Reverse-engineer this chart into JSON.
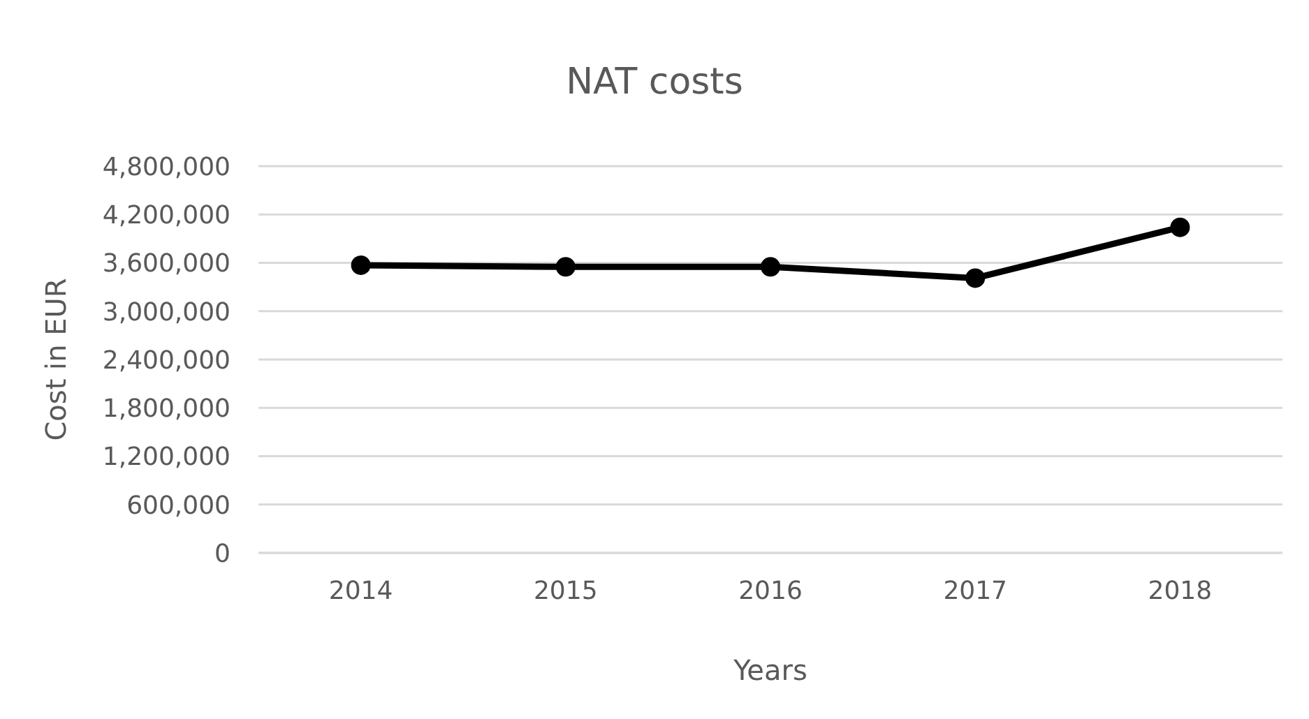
{
  "chart_data": {
    "type": "line",
    "title": "NAT costs",
    "xlabel": "Years",
    "ylabel": "Cost in EUR",
    "categories": [
      "2014",
      "2015",
      "2016",
      "2017",
      "2018"
    ],
    "series": [
      {
        "color": "#000000",
        "values": [
          3570000,
          3550000,
          3550000,
          3410000,
          4040000
        ]
      }
    ],
    "ylim": [
      0,
      4800000
    ],
    "yticks": [
      0,
      {
        "value": 600000,
        "label": "600,000"
      },
      {
        "value": 1200000,
        "label": "1,200,000"
      },
      {
        "value": 1800000,
        "label": "1,800,000"
      },
      {
        "value": 2400000,
        "label": "2,400,000"
      },
      {
        "value": 3000000,
        "label": "3,000,000"
      },
      {
        "value": 3600000,
        "label": "3,600,000"
      },
      {
        "value": 4200000,
        "label": "4,200,000"
      },
      {
        "value": 4800000,
        "label": "4,800,000"
      }
    ],
    "grid": "y",
    "marker": "circle",
    "line_style": "solid"
  }
}
